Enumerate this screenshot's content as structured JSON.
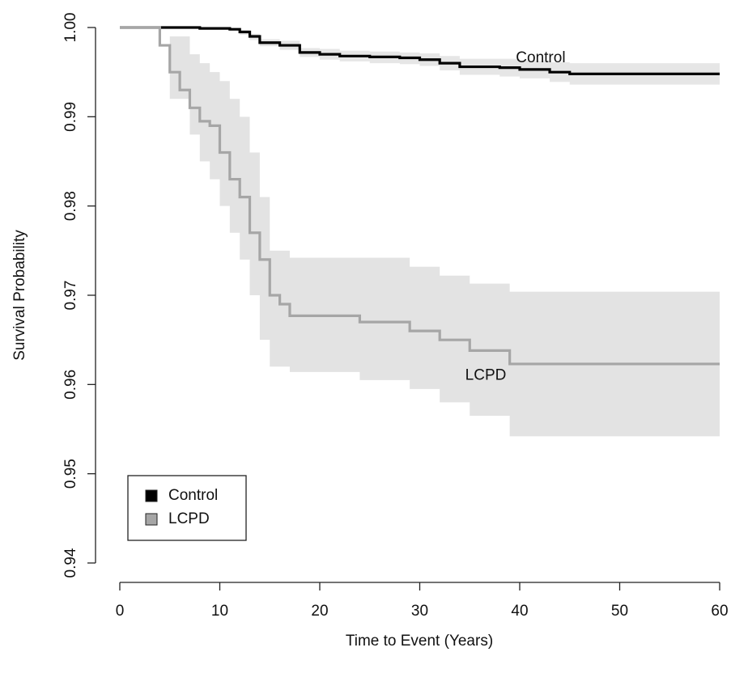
{
  "chart_data": {
    "type": "step",
    "xlabel": "Time to Event (Years)",
    "ylabel": "Survival Probability",
    "xlim": [
      0,
      60
    ],
    "xticks": [
      0,
      10,
      20,
      30,
      40,
      50,
      60
    ],
    "ylim": [
      0.94,
      1.0
    ],
    "yticks": [
      0.94,
      0.95,
      0.96,
      0.97,
      0.98,
      0.99,
      {
        "value": 1.0,
        "label": "1.00"
      }
    ],
    "grid": false,
    "legend": "bottom-left",
    "series": [
      {
        "name": "Control",
        "color": "#000000",
        "band_color": "#e6e6e6",
        "x": [
          0,
          3,
          8,
          11,
          12,
          13,
          14,
          16,
          18,
          20,
          22,
          25,
          28,
          30,
          32,
          34,
          38,
          40,
          43,
          45,
          60
        ],
        "values": [
          1.0,
          1.0,
          0.9999,
          0.9998,
          0.9995,
          0.999,
          0.9983,
          0.998,
          0.9972,
          0.997,
          0.9968,
          0.9967,
          0.9966,
          0.9964,
          0.996,
          0.9956,
          0.9955,
          0.9953,
          0.995,
          0.9948,
          0.9948
        ],
        "band": {
          "x": [
            0,
            3,
            8,
            11,
            12,
            13,
            14,
            16,
            18,
            20,
            22,
            25,
            28,
            30,
            32,
            34,
            38,
            40,
            43,
            45,
            60
          ],
          "lower": [
            1.0,
            1.0,
            0.9998,
            0.9996,
            0.9992,
            0.9986,
            0.9979,
            0.9975,
            0.9967,
            0.9964,
            0.9962,
            0.996,
            0.9959,
            0.9957,
            0.9952,
            0.9947,
            0.9945,
            0.9943,
            0.9939,
            0.9936,
            0.9936
          ],
          "upper": [
            1.0,
            1.0,
            1.0,
            0.9999,
            0.9997,
            0.9993,
            0.9987,
            0.9985,
            0.9977,
            0.9976,
            0.9974,
            0.9973,
            0.9972,
            0.9971,
            0.9968,
            0.9965,
            0.9965,
            0.9963,
            0.9961,
            0.996,
            0.996
          ]
        }
      },
      {
        "name": "LCPD",
        "color": "#a6a6a6",
        "band_color": "#e3e3e3",
        "x": [
          0,
          3,
          4,
          5,
          6,
          7,
          8,
          9,
          10,
          11,
          12,
          13,
          14,
          15,
          16,
          17,
          24,
          29,
          32,
          35,
          39,
          60
        ],
        "values": [
          1.0,
          1.0,
          0.998,
          0.995,
          0.993,
          0.991,
          0.9895,
          0.989,
          0.986,
          0.983,
          0.981,
          0.977,
          0.974,
          0.97,
          0.969,
          0.9677,
          0.967,
          0.966,
          0.965,
          0.9638,
          0.9623,
          0.9623
        ],
        "band": {
          "x": [
            0,
            3,
            5,
            7,
            8,
            9,
            10,
            11,
            12,
            13,
            14,
            15,
            17,
            24,
            29,
            32,
            35,
            39,
            60
          ],
          "lower": [
            1.0,
            1.0,
            0.992,
            0.988,
            0.985,
            0.983,
            0.98,
            0.977,
            0.974,
            0.97,
            0.965,
            0.962,
            0.9614,
            0.9605,
            0.9595,
            0.958,
            0.9565,
            0.9542,
            0.9542
          ],
          "upper": [
            1.0,
            1.0,
            0.999,
            0.997,
            0.996,
            0.995,
            0.994,
            0.992,
            0.99,
            0.986,
            0.981,
            0.975,
            0.9742,
            0.9742,
            0.9732,
            0.9722,
            0.9713,
            0.9704,
            0.9704
          ]
        }
      }
    ],
    "annotations": [
      {
        "text": "Control",
        "x": 42.1,
        "y": 0.99655
      },
      {
        "text": "LCPD",
        "x": 36.6,
        "y": 0.961
      }
    ]
  }
}
